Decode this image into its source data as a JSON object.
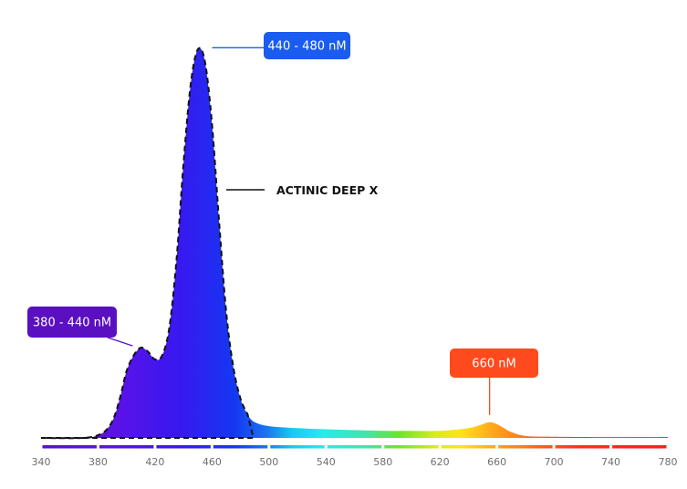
{
  "chart_data": {
    "type": "area",
    "title": "",
    "xlabel": "",
    "ylabel": "",
    "xlim": [
      340,
      780
    ],
    "ylim": [
      0,
      100
    ],
    "grid": false,
    "x_ticks": [
      340,
      380,
      420,
      460,
      500,
      540,
      580,
      620,
      660,
      700,
      740,
      780
    ],
    "series": [
      {
        "name": "ACTINIC DEEP X",
        "x": [
          340,
          370,
          382,
          388,
          392,
          396,
          400,
          405,
          410,
          415,
          420,
          425,
          430,
          435,
          440,
          445,
          450,
          455,
          460,
          465,
          470,
          475,
          480,
          485,
          490,
          500,
          520,
          540,
          560,
          580,
          600,
          620,
          640,
          650,
          655,
          660,
          665,
          670,
          680,
          700,
          740,
          780
        ],
        "y": [
          0,
          0,
          1,
          3,
          6,
          11,
          17,
          21,
          23,
          22,
          20,
          21,
          28,
          45,
          70,
          90,
          99,
          96,
          80,
          55,
          32,
          18,
          10,
          6,
          4,
          3,
          2.5,
          2.2,
          2,
          1.8,
          1.8,
          1.8,
          2.5,
          3.5,
          4,
          3.5,
          2.5,
          1.5,
          0.5,
          0.3,
          0.2,
          0.2
        ]
      }
    ],
    "annotations": [
      {
        "text": "440 - 480 nM",
        "x": 455,
        "y": 99,
        "color": "#1a5cf0"
      },
      {
        "text": "380 - 440 nM",
        "x": 412,
        "y": 23,
        "color": "#5a0fc0"
      },
      {
        "text": "660 nM",
        "x": 655,
        "y": 4,
        "color": "#ff4a1e"
      },
      {
        "text": "ACTINIC DEEP X",
        "x": 468,
        "y": 57,
        "color": "#111111"
      }
    ],
    "outline_series": "ACTINIC DEEP X",
    "outline_xlim": [
      340,
      489
    ],
    "outline_style": "dashed",
    "spectrum_bar": true,
    "colors": {
      "violet": "#5a0fc0",
      "blue": "#1a5cf0",
      "cyan": "#20e6f0",
      "green": "#6fe32a",
      "yellow": "#ffe21e",
      "orange": "#ff8a16",
      "red": "#ff2a1e"
    }
  }
}
